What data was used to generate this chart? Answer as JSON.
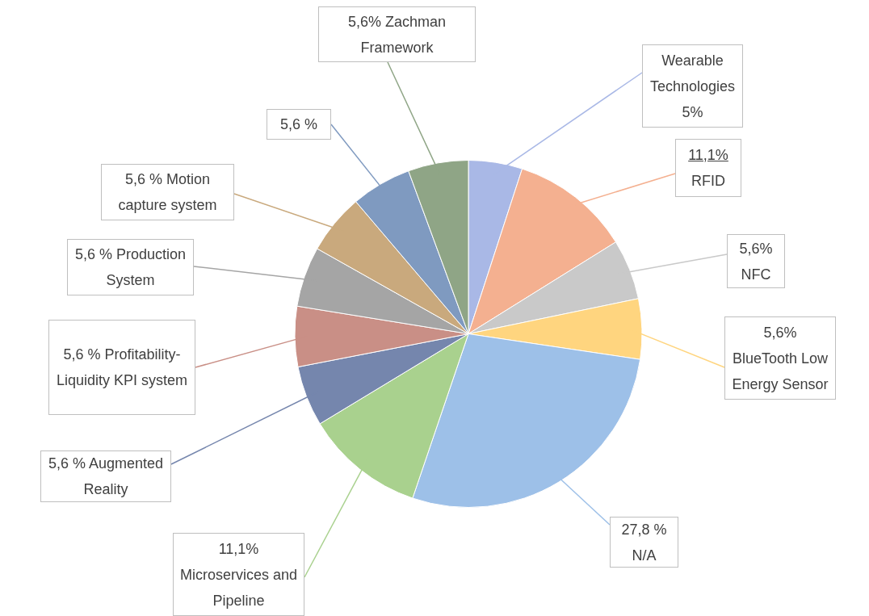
{
  "chart_data": {
    "type": "pie",
    "categories": [
      "Wearable Technologies",
      "RFID",
      "NFC",
      "BlueTooth Low Energy Sensor",
      "N/A",
      "Microservices and Pipeline",
      "Augmented Reality",
      "Profitability-Liquidity KPI system",
      "Production System",
      "Motion capture system",
      null,
      "Zachman Framework"
    ],
    "values": [
      5,
      11.1,
      5.6,
      5.6,
      27.8,
      11.1,
      5.6,
      5.6,
      5.6,
      5.6,
      5.6,
      5.6
    ],
    "value_labels": [
      "5%",
      "11,1%",
      "5,6%",
      "5,6%",
      "27,8 %",
      "11,1%",
      "5,6 %",
      "5,6 %",
      "5,6 %",
      "5,6 %",
      "5,6 %",
      "5,6%"
    ],
    "colors": [
      "#a9b8e6",
      "#f4b090",
      "#c9c9c9",
      "#ffd57f",
      "#9dc0e8",
      "#a9d18e",
      "#7586ad",
      "#c98f86",
      "#a5a5a5",
      "#c9a97d",
      "#7f9ac0",
      "#8fa586"
    ],
    "legend": false
  }
}
